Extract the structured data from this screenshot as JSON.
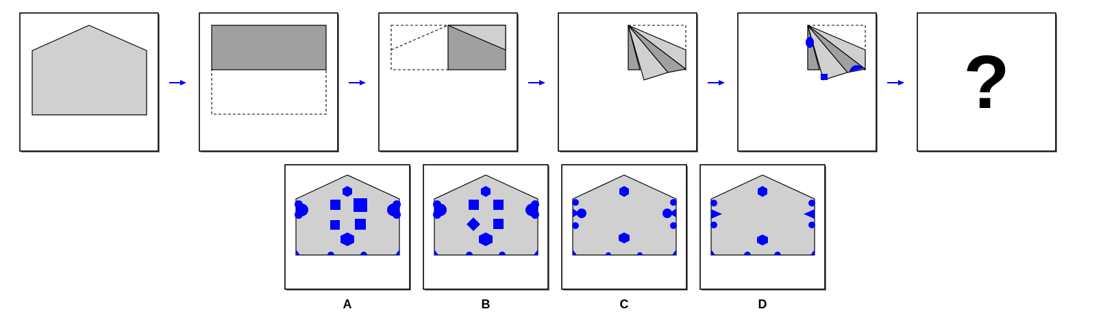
{
  "puzzle": {
    "question_mark": "?",
    "hole_color": "#0000ff",
    "paper_color": "#d0d0d0",
    "folded_color": "#a0a0a0",
    "options": [
      {
        "label": "A"
      },
      {
        "label": "B"
      },
      {
        "label": "C"
      },
      {
        "label": "D"
      }
    ]
  }
}
